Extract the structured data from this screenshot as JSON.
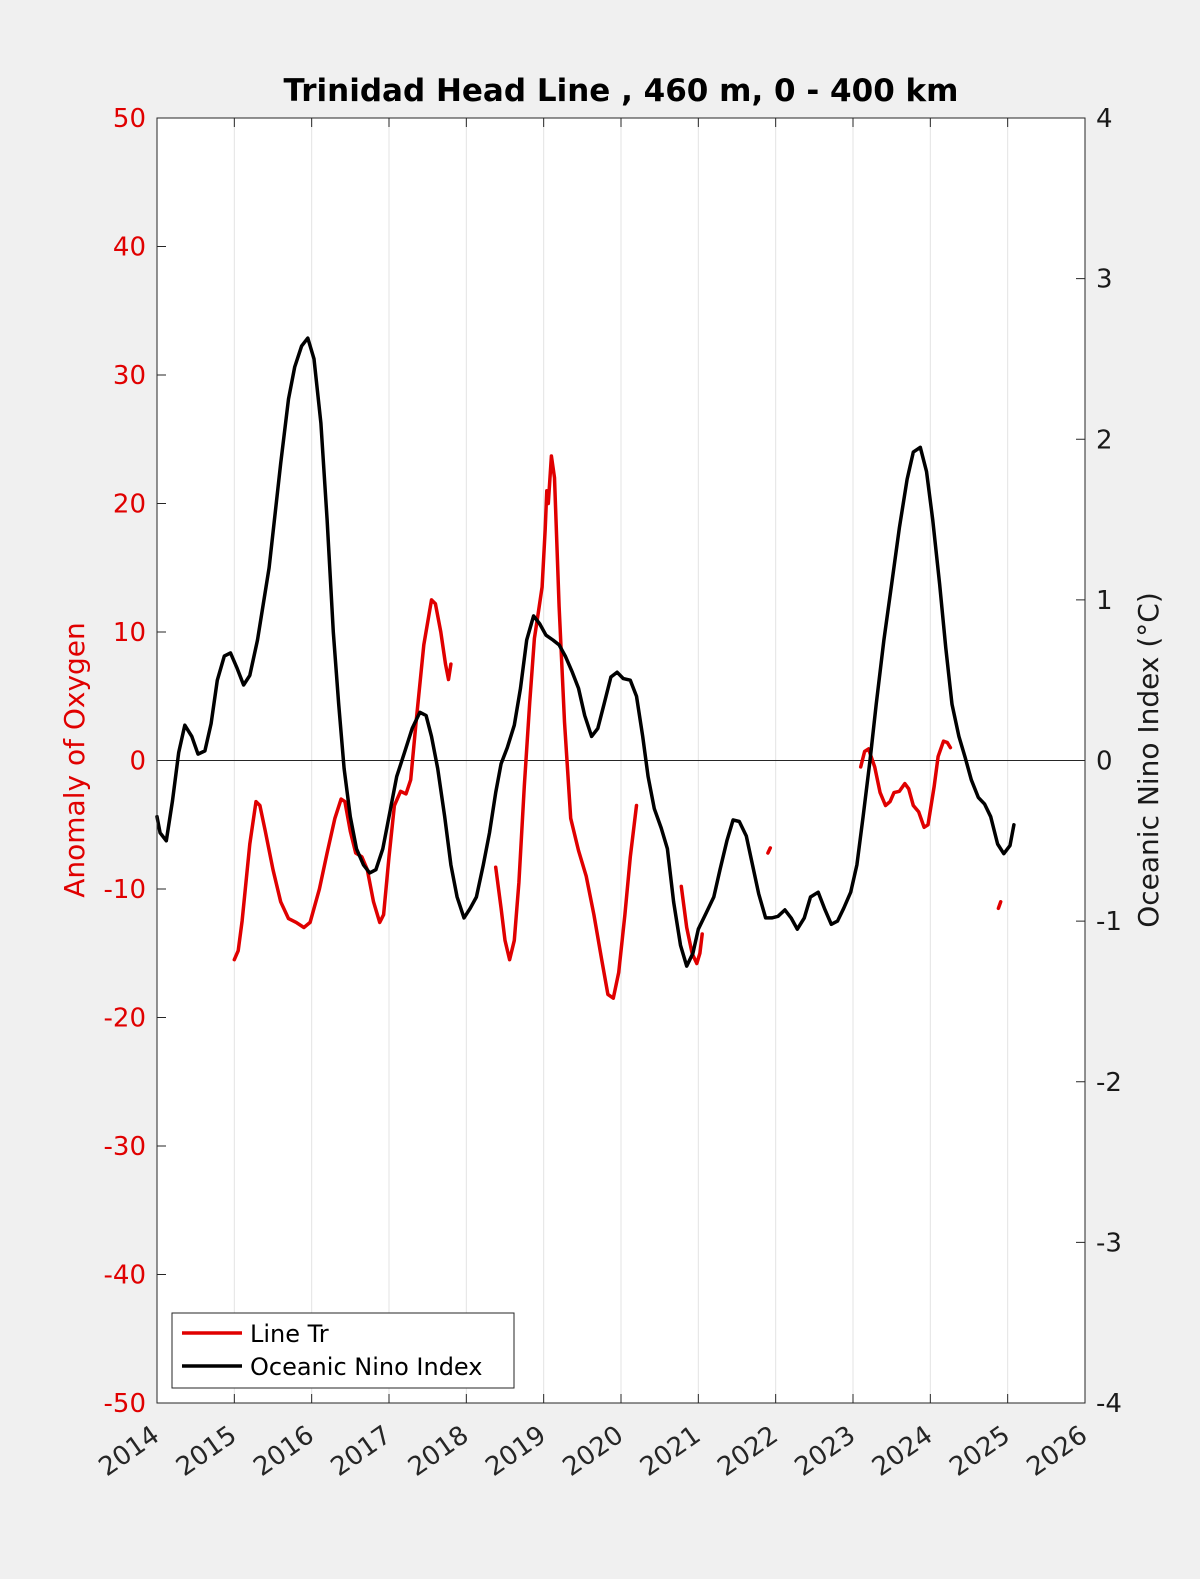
{
  "chart_data": {
    "type": "line",
    "title": "Trinidad Head Line , 460 m, 0 - 400 km",
    "xlabel": "",
    "ylabel_left": "Anomaly of Oxygen",
    "ylabel_right": "Oceanic Nino Index (°C)",
    "xlim": [
      2014,
      2026
    ],
    "ylim_left": [
      -50,
      50
    ],
    "ylim_right": [
      -4,
      4
    ],
    "x_ticks": [
      "2014",
      "2015",
      "2016",
      "2017",
      "2018",
      "2019",
      "2020",
      "2021",
      "2022",
      "2023",
      "2024",
      "2025",
      "2026"
    ],
    "y_left_ticks": [
      "50",
      "40",
      "30",
      "20",
      "10",
      "0",
      "-10",
      "-20",
      "-30",
      "-40",
      "-50"
    ],
    "y_right_ticks": [
      "4",
      "3",
      "2",
      "1",
      "0",
      "-1",
      "-2",
      "-3",
      "-4"
    ],
    "grid": "vertical",
    "legend_position": "bottom-left",
    "colors": {
      "oxygen": "#e00000",
      "oni": "#000000",
      "left_axis": "#e00000",
      "right_axis": "#1a1a1a"
    },
    "series": [
      {
        "name": "Line Tr",
        "axis": "left",
        "segments": [
          [
            [
              2015.0,
              -15.5
            ],
            [
              2015.05,
              -14.8
            ],
            [
              2015.1,
              -12.5
            ],
            [
              2015.2,
              -6.5
            ],
            [
              2015.28,
              -3.2
            ],
            [
              2015.33,
              -3.5
            ],
            [
              2015.4,
              -5.5
            ],
            [
              2015.5,
              -8.5
            ],
            [
              2015.6,
              -11.0
            ],
            [
              2015.7,
              -12.3
            ],
            [
              2015.8,
              -12.6
            ],
            [
              2015.9,
              -13.0
            ],
            [
              2015.98,
              -12.6
            ],
            [
              2016.1,
              -10.0
            ],
            [
              2016.2,
              -7.2
            ],
            [
              2016.3,
              -4.5
            ],
            [
              2016.38,
              -3.0
            ],
            [
              2016.43,
              -3.2
            ],
            [
              2016.5,
              -5.5
            ],
            [
              2016.57,
              -7.2
            ],
            [
              2016.65,
              -7.5
            ],
            [
              2016.72,
              -8.5
            ],
            [
              2016.8,
              -11.0
            ],
            [
              2016.88,
              -12.6
            ],
            [
              2016.93,
              -12.0
            ],
            [
              2017.0,
              -7.5
            ],
            [
              2017.07,
              -3.5
            ],
            [
              2017.15,
              -2.4
            ],
            [
              2017.22,
              -2.6
            ],
            [
              2017.28,
              -1.5
            ],
            [
              2017.35,
              3.0
            ],
            [
              2017.45,
              9.0
            ],
            [
              2017.55,
              12.5
            ],
            [
              2017.6,
              12.2
            ],
            [
              2017.67,
              10.0
            ],
            [
              2017.73,
              7.5
            ],
            [
              2017.77,
              6.3
            ],
            [
              2017.8,
              7.5
            ]
          ],
          [
            [
              2018.38,
              -8.3
            ],
            [
              2018.45,
              -11.5
            ],
            [
              2018.5,
              -14.0
            ],
            [
              2018.56,
              -15.5
            ],
            [
              2018.62,
              -14.0
            ],
            [
              2018.68,
              -9.5
            ],
            [
              2018.75,
              -2.0
            ],
            [
              2018.82,
              4.5
            ],
            [
              2018.88,
              9.5
            ],
            [
              2018.93,
              11.5
            ],
            [
              2018.98,
              13.5
            ],
            [
              2019.02,
              18.0
            ],
            [
              2019.04,
              21.0
            ],
            [
              2019.06,
              20.0
            ],
            [
              2019.1,
              23.7
            ],
            [
              2019.14,
              22.0
            ],
            [
              2019.2,
              12.0
            ],
            [
              2019.27,
              3.0
            ],
            [
              2019.35,
              -4.5
            ],
            [
              2019.45,
              -7.0
            ],
            [
              2019.55,
              -9.0
            ],
            [
              2019.65,
              -12.0
            ],
            [
              2019.75,
              -15.5
            ],
            [
              2019.83,
              -18.2
            ],
            [
              2019.9,
              -18.5
            ],
            [
              2019.97,
              -16.5
            ],
            [
              2020.05,
              -12.0
            ],
            [
              2020.12,
              -7.5
            ],
            [
              2020.2,
              -3.5
            ]
          ],
          [
            [
              2020.78,
              -9.8
            ],
            [
              2020.85,
              -13.0
            ],
            [
              2020.92,
              -15.0
            ],
            [
              2020.98,
              -15.8
            ],
            [
              2021.02,
              -15.0
            ],
            [
              2021.05,
              -13.5
            ]
          ],
          [
            [
              2021.9,
              -7.2
            ],
            [
              2021.93,
              -6.8
            ]
          ],
          [
            [
              2023.1,
              -0.5
            ],
            [
              2023.15,
              0.7
            ],
            [
              2023.2,
              0.9
            ],
            [
              2023.28,
              -0.5
            ],
            [
              2023.35,
              -2.5
            ],
            [
              2023.42,
              -3.5
            ],
            [
              2023.48,
              -3.2
            ],
            [
              2023.53,
              -2.5
            ],
            [
              2023.6,
              -2.4
            ],
            [
              2023.67,
              -1.8
            ],
            [
              2023.72,
              -2.2
            ],
            [
              2023.78,
              -3.5
            ],
            [
              2023.85,
              -4.0
            ],
            [
              2023.92,
              -5.2
            ],
            [
              2023.97,
              -5.0
            ],
            [
              2024.05,
              -2.0
            ],
            [
              2024.1,
              0.3
            ],
            [
              2024.17,
              1.5
            ],
            [
              2024.22,
              1.4
            ],
            [
              2024.26,
              1.0
            ]
          ],
          [
            [
              2024.88,
              -11.5
            ],
            [
              2024.91,
              -11.0
            ]
          ]
        ]
      },
      {
        "name": "Oceanic Nino Index",
        "axis": "right",
        "segments": [
          [
            [
              2014.0,
              -0.35
            ],
            [
              2014.04,
              -0.45
            ],
            [
              2014.12,
              -0.5
            ],
            [
              2014.2,
              -0.25
            ],
            [
              2014.28,
              0.05
            ],
            [
              2014.36,
              0.22
            ],
            [
              2014.45,
              0.15
            ],
            [
              2014.53,
              0.04
            ],
            [
              2014.62,
              0.06
            ],
            [
              2014.7,
              0.23
            ],
            [
              2014.78,
              0.5
            ],
            [
              2014.87,
              0.65
            ],
            [
              2014.95,
              0.67
            ],
            [
              2015.03,
              0.58
            ],
            [
              2015.12,
              0.47
            ],
            [
              2015.2,
              0.53
            ],
            [
              2015.3,
              0.75
            ],
            [
              2015.45,
              1.2
            ],
            [
              2015.6,
              1.85
            ],
            [
              2015.7,
              2.25
            ],
            [
              2015.78,
              2.45
            ],
            [
              2015.87,
              2.58
            ],
            [
              2015.95,
              2.63
            ],
            [
              2016.03,
              2.5
            ],
            [
              2016.12,
              2.1
            ],
            [
              2016.2,
              1.5
            ],
            [
              2016.28,
              0.8
            ],
            [
              2016.35,
              0.35
            ],
            [
              2016.42,
              -0.05
            ],
            [
              2016.5,
              -0.35
            ],
            [
              2016.58,
              -0.55
            ],
            [
              2016.67,
              -0.65
            ],
            [
              2016.75,
              -0.7
            ],
            [
              2016.83,
              -0.68
            ],
            [
              2016.92,
              -0.55
            ],
            [
              2017.0,
              -0.35
            ],
            [
              2017.1,
              -0.1
            ],
            [
              2017.2,
              0.05
            ],
            [
              2017.3,
              0.2
            ],
            [
              2017.4,
              0.3
            ],
            [
              2017.48,
              0.28
            ],
            [
              2017.55,
              0.15
            ],
            [
              2017.63,
              -0.05
            ],
            [
              2017.72,
              -0.35
            ],
            [
              2017.8,
              -0.65
            ],
            [
              2017.88,
              -0.85
            ],
            [
              2017.97,
              -0.98
            ],
            [
              2018.05,
              -0.92
            ],
            [
              2018.13,
              -0.85
            ],
            [
              2018.22,
              -0.65
            ],
            [
              2018.3,
              -0.45
            ],
            [
              2018.38,
              -0.2
            ],
            [
              2018.45,
              -0.02
            ],
            [
              2018.53,
              0.08
            ],
            [
              2018.62,
              0.22
            ],
            [
              2018.7,
              0.45
            ],
            [
              2018.78,
              0.75
            ],
            [
              2018.87,
              0.9
            ],
            [
              2018.95,
              0.85
            ],
            [
              2019.03,
              0.78
            ],
            [
              2019.12,
              0.75
            ],
            [
              2019.2,
              0.72
            ],
            [
              2019.28,
              0.65
            ],
            [
              2019.37,
              0.55
            ],
            [
              2019.45,
              0.45
            ],
            [
              2019.53,
              0.28
            ],
            [
              2019.62,
              0.15
            ],
            [
              2019.7,
              0.2
            ],
            [
              2019.78,
              0.35
            ],
            [
              2019.87,
              0.52
            ],
            [
              2019.95,
              0.55
            ],
            [
              2020.03,
              0.51
            ],
            [
              2020.12,
              0.5
            ],
            [
              2020.2,
              0.4
            ],
            [
              2020.28,
              0.15
            ],
            [
              2020.35,
              -0.1
            ],
            [
              2020.43,
              -0.3
            ],
            [
              2020.52,
              -0.42
            ],
            [
              2020.6,
              -0.55
            ],
            [
              2020.68,
              -0.88
            ],
            [
              2020.77,
              -1.15
            ],
            [
              2020.85,
              -1.28
            ],
            [
              2020.93,
              -1.2
            ],
            [
              2021.0,
              -1.05
            ],
            [
              2021.1,
              -0.95
            ],
            [
              2021.2,
              -0.85
            ],
            [
              2021.28,
              -0.68
            ],
            [
              2021.37,
              -0.5
            ],
            [
              2021.45,
              -0.37
            ],
            [
              2021.53,
              -0.38
            ],
            [
              2021.62,
              -0.47
            ],
            [
              2021.7,
              -0.65
            ],
            [
              2021.78,
              -0.83
            ],
            [
              2021.87,
              -0.98
            ],
            [
              2021.95,
              -0.98
            ],
            [
              2022.03,
              -0.97
            ],
            [
              2022.12,
              -0.93
            ],
            [
              2022.2,
              -0.98
            ],
            [
              2022.28,
              -1.05
            ],
            [
              2022.37,
              -0.98
            ],
            [
              2022.45,
              -0.85
            ],
            [
              2022.55,
              -0.82
            ],
            [
              2022.63,
              -0.92
            ],
            [
              2022.72,
              -1.02
            ],
            [
              2022.8,
              -1.0
            ],
            [
              2022.88,
              -0.92
            ],
            [
              2022.97,
              -0.82
            ],
            [
              2023.05,
              -0.65
            ],
            [
              2023.13,
              -0.35
            ],
            [
              2023.22,
              0.0
            ],
            [
              2023.3,
              0.35
            ],
            [
              2023.4,
              0.75
            ],
            [
              2023.5,
              1.1
            ],
            [
              2023.6,
              1.45
            ],
            [
              2023.7,
              1.75
            ],
            [
              2023.78,
              1.92
            ],
            [
              2023.87,
              1.95
            ],
            [
              2023.95,
              1.8
            ],
            [
              2024.03,
              1.5
            ],
            [
              2024.12,
              1.1
            ],
            [
              2024.2,
              0.7
            ],
            [
              2024.28,
              0.35
            ],
            [
              2024.37,
              0.15
            ],
            [
              2024.45,
              0.02
            ],
            [
              2024.53,
              -0.12
            ],
            [
              2024.62,
              -0.23
            ],
            [
              2024.7,
              -0.27
            ],
            [
              2024.78,
              -0.35
            ],
            [
              2024.87,
              -0.52
            ],
            [
              2024.95,
              -0.58
            ],
            [
              2025.03,
              -0.53
            ],
            [
              2025.08,
              -0.4
            ]
          ]
        ]
      }
    ]
  }
}
